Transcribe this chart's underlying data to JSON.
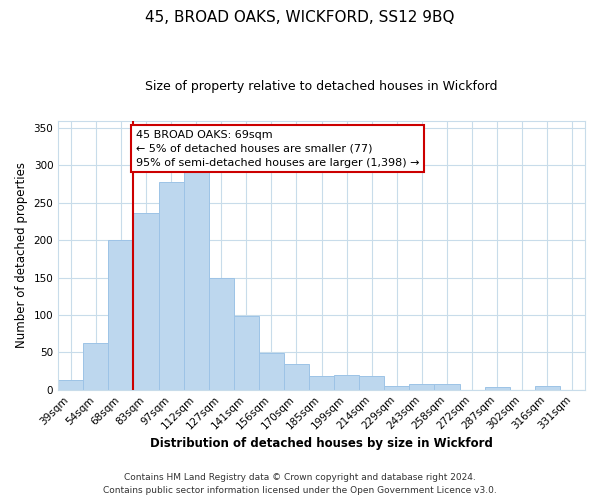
{
  "title": "45, BROAD OAKS, WICKFORD, SS12 9BQ",
  "subtitle": "Size of property relative to detached houses in Wickford",
  "xlabel": "Distribution of detached houses by size in Wickford",
  "ylabel": "Number of detached properties",
  "categories": [
    "39sqm",
    "54sqm",
    "68sqm",
    "83sqm",
    "97sqm",
    "112sqm",
    "127sqm",
    "141sqm",
    "156sqm",
    "170sqm",
    "185sqm",
    "199sqm",
    "214sqm",
    "229sqm",
    "243sqm",
    "258sqm",
    "272sqm",
    "287sqm",
    "302sqm",
    "316sqm",
    "331sqm"
  ],
  "values": [
    13,
    63,
    200,
    237,
    278,
    291,
    150,
    98,
    49,
    35,
    19,
    20,
    19,
    5,
    8,
    8,
    0,
    4,
    0,
    5,
    0
  ],
  "bar_color": "#bdd7ee",
  "bar_edge_color": "#9dc3e6",
  "vline_x_index": 2,
  "vline_color": "#cc0000",
  "annotation_box_color": "#ffffff",
  "annotation_box_edge_color": "#cc0000",
  "annotation_text_line1": "45 BROAD OAKS: 69sqm",
  "annotation_text_line2": "← 5% of detached houses are smaller (77)",
  "annotation_text_line3": "95% of semi-detached houses are larger (1,398) →",
  "ylim": [
    0,
    360
  ],
  "yticks": [
    0,
    50,
    100,
    150,
    200,
    250,
    300,
    350
  ],
  "footer_line1": "Contains HM Land Registry data © Crown copyright and database right 2024.",
  "footer_line2": "Contains public sector information licensed under the Open Government Licence v3.0.",
  "background_color": "#ffffff",
  "grid_color": "#c8dcea",
  "title_fontsize": 11,
  "subtitle_fontsize": 9,
  "axis_label_fontsize": 8.5,
  "tick_fontsize": 7.5,
  "annotation_fontsize": 8,
  "footer_fontsize": 6.5
}
